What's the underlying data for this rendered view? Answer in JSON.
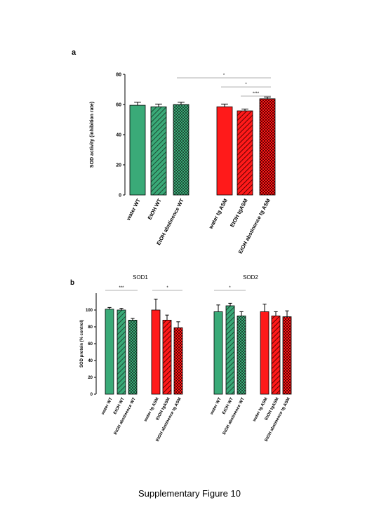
{
  "figure_caption": "Supplementary Figure 10",
  "colors": {
    "green": "#3aaa78",
    "red": "#ff1a1a",
    "sig_line": "#999999"
  },
  "chart_data": [
    {
      "type": "bar",
      "panel_label": "a",
      "title": "",
      "ylabel": "SOD activity (inhibition rate)",
      "ylim": [
        0,
        80
      ],
      "yticks": [
        0,
        20,
        40,
        60,
        80
      ],
      "categories": [
        "water WT",
        "EtOH WT",
        "EtOH abstinence WT",
        "water tg ASM",
        "EtOH tgASM",
        "EtOH abstinence tg ASM"
      ],
      "values": [
        59.5,
        58.5,
        60,
        58.5,
        55.8,
        63.8
      ],
      "errors": [
        2,
        1.8,
        1.5,
        1.8,
        1.2,
        1.2
      ],
      "colors": [
        "green",
        "green",
        "green",
        "red",
        "red",
        "red"
      ],
      "patterns": [
        "solid",
        "hatch",
        "check",
        "solid",
        "hatch",
        "check"
      ],
      "significance": [
        {
          "label": "*",
          "from": 0,
          "to": 5
        },
        {
          "label": "*",
          "from": 3,
          "to": 5
        },
        {
          "label": "****",
          "from": 4,
          "to": 5
        }
      ]
    },
    {
      "type": "bar",
      "panel_label": "b",
      "title": "SOD1",
      "ylabel": "SOD protein (% control)",
      "ylim": [
        0,
        120
      ],
      "yticks": [
        0,
        20,
        40,
        60,
        80,
        100
      ],
      "categories": [
        "water WT",
        "EtOH WT",
        "EtOH abstinence WT",
        "water tg ASM",
        "EtOH tgASM",
        "EtOH abstinence tg ASM"
      ],
      "values": [
        101,
        100,
        88,
        100,
        88,
        79
      ],
      "errors": [
        2,
        2,
        2,
        13,
        6,
        7
      ],
      "colors": [
        "green",
        "green",
        "green",
        "red",
        "red",
        "red"
      ],
      "patterns": [
        "solid",
        "hatch",
        "check",
        "solid",
        "hatch",
        "check"
      ],
      "significance": [
        {
          "label": "***",
          "from": 0,
          "to": 2
        },
        {
          "label": "*",
          "from": 3,
          "to": 5
        }
      ]
    },
    {
      "type": "bar",
      "panel_label": "",
      "title": "SOD2",
      "ylabel": "",
      "ylim": [
        0,
        120
      ],
      "yticks": [],
      "categories": [
        "water WT",
        "EtOH WT",
        "EtOH abstinence WT",
        "water tg ASM",
        "EtOH tgASM",
        "EtOH abstinence tg ASM"
      ],
      "values": [
        98,
        105,
        93,
        98,
        93,
        92
      ],
      "errors": [
        8,
        3,
        5,
        9,
        5,
        7
      ],
      "colors": [
        "green",
        "green",
        "green",
        "red",
        "red",
        "red"
      ],
      "patterns": [
        "solid",
        "hatch",
        "check",
        "solid",
        "hatch",
        "check"
      ],
      "significance": [
        {
          "label": "*",
          "from": 0,
          "to": 2
        }
      ]
    }
  ]
}
